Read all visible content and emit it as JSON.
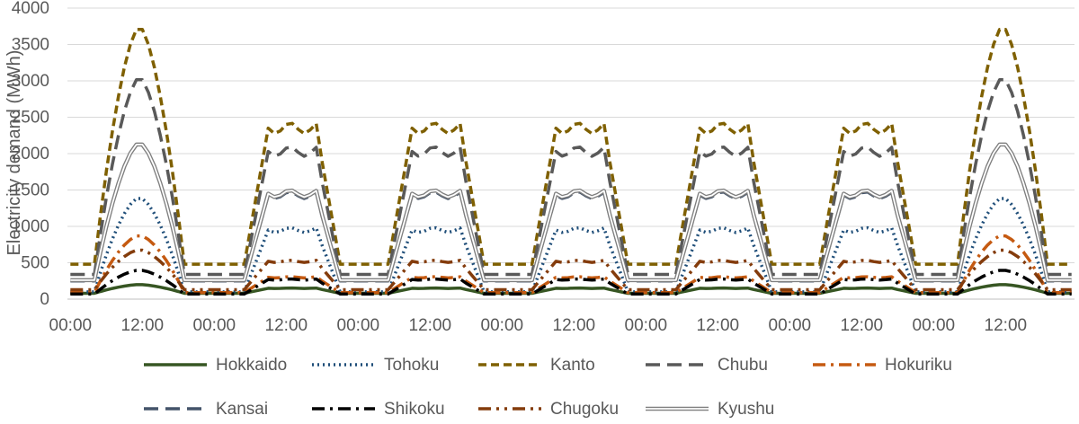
{
  "chart_data": {
    "type": "line",
    "title": "",
    "xlabel": "",
    "ylabel": "Electricity demand (MWh)",
    "ylim": [
      0,
      4000
    ],
    "yticks": [
      "0",
      "500",
      "1000",
      "1500",
      "2000",
      "2500",
      "3000",
      "3500",
      "4000"
    ],
    "xticks": [
      "00:00",
      "12:00",
      "00:00",
      "12:00",
      "00:00",
      "12:00",
      "00:00",
      "12:00",
      "00:00",
      "12:00",
      "00:00",
      "12:00",
      "00:00",
      "12:00"
    ],
    "days": 7,
    "hours_per_day": 24,
    "grid": true,
    "legend_position": "bottom",
    "series": [
      {
        "name": "Hokkaido",
        "color": "#375623",
        "dash": "solid",
        "min": 80,
        "peak_weekday": 150,
        "peak_weekend": 200
      },
      {
        "name": "Tohoku",
        "color": "#1f4e79",
        "dash": "dotted",
        "min": 100,
        "peak_weekday": 950,
        "peak_weekend": 1400
      },
      {
        "name": "Kanto",
        "color": "#7f6000",
        "dash": "dashed",
        "min": 480,
        "peak_weekday": 2350,
        "peak_weekend": 3750
      },
      {
        "name": "Chubu",
        "color": "#595959",
        "dash": "longdash",
        "min": 340,
        "peak_weekday": 2030,
        "peak_weekend": 3050
      },
      {
        "name": "Hokuriku",
        "color": "#c55a11",
        "dash": "dashdot",
        "min": 90,
        "peak_weekday": 300,
        "peak_weekend": 880
      },
      {
        "name": "Kansai",
        "color": "#44546a",
        "dash": "longdash",
        "min": 250,
        "peak_weekday": 1430,
        "peak_weekend": 2150
      },
      {
        "name": "Shikoku",
        "color": "#000000",
        "dash": "dashdot",
        "min": 70,
        "peak_weekday": 270,
        "peak_weekend": 400
      },
      {
        "name": "Chugoku",
        "color": "#843c0c",
        "dash": "dashdotdot",
        "min": 130,
        "peak_weekday": 520,
        "peak_weekend": 680
      },
      {
        "name": "Kyushu",
        "color": "#7f7f7f",
        "dash": "double",
        "min": 260,
        "peak_weekday": 1450,
        "peak_weekend": 2150
      }
    ]
  }
}
